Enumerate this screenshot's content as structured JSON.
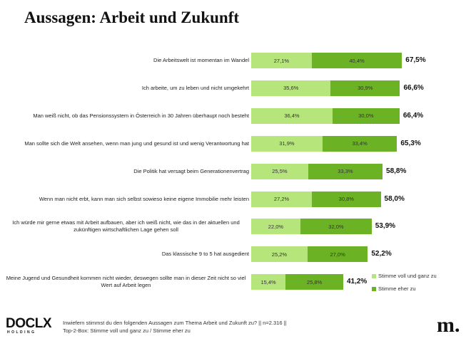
{
  "chart_data": {
    "type": "stacked-bar-horizontal",
    "title": "Aussagen: Arbeit und Zukunft",
    "categories": [
      "Die Arbeitswelt ist momentan im Wandel",
      "Ich arbeite, um zu leben und nicht umgekehrt",
      "Man weiß nicht, ob das Pensionssystem in Österreich in 30 Jahren überhaupt noch besteht",
      "Man sollte sich die Welt ansehen, wenn man jung und gesund ist und wenig Verantwortung hat",
      "Die Politik hat versagt beim Generationenvertrag",
      "Wenn man nicht erbt, kann man sich selbst sowieso keine eigene Immobilie mehr leisten",
      "Ich würde mir gerne etwas mit Arbeit aufbauen, aber ich weiß nicht, wie das in der aktuellen und zukünftigen wirtschaftlichen Lage gehen soll",
      "Das klassische 9 to 5 hat ausgedient",
      "Meine Jugend und Gesundheit kommen nicht wieder, deswegen sollte man in dieser Zeit nicht so viel Wert auf Arbeit legen"
    ],
    "series": [
      {
        "name": "Stimme voll und ganz zu",
        "color": "#b6e57c",
        "values": [
          27.1,
          35.6,
          36.4,
          31.9,
          25.5,
          27.2,
          22.0,
          25.2,
          15.4
        ],
        "value_labels": [
          "27,1%",
          "35,6%",
          "36,4%",
          "31,9%",
          "25,5%",
          "27,2%",
          "22,0%",
          "25,2%",
          "15,4%"
        ]
      },
      {
        "name": "Stimme eher zu",
        "color": "#6bb324",
        "values": [
          40.4,
          30.9,
          30.0,
          33.4,
          33.3,
          30.8,
          32.0,
          27.0,
          25.8
        ],
        "value_labels": [
          "40,4%",
          "30,9%",
          "30,0%",
          "33,4%",
          "33,3%",
          "30,8%",
          "32,0%",
          "27,0%",
          "25,8%"
        ]
      }
    ],
    "totals": [
      67.5,
      66.6,
      66.4,
      65.3,
      58.8,
      58.0,
      53.9,
      52.2,
      41.2
    ],
    "total_labels": [
      "67,5%",
      "66,6%",
      "66,4%",
      "65,3%",
      "58,8%",
      "58,0%",
      "53,9%",
      "52,2%",
      "41,2%"
    ]
  },
  "footer": {
    "logo_left": "DOCLX",
    "logo_left_sub": "HOLDING",
    "note": [
      "Inwiefern stimmst du den folgenden Aussagen zum Thema Arbeit und Zukunft zu? || n=2.316 ||",
      "Top-2-Box: Stimme voll und ganz zu / Stimme eher zu"
    ],
    "logo_right": "m."
  }
}
